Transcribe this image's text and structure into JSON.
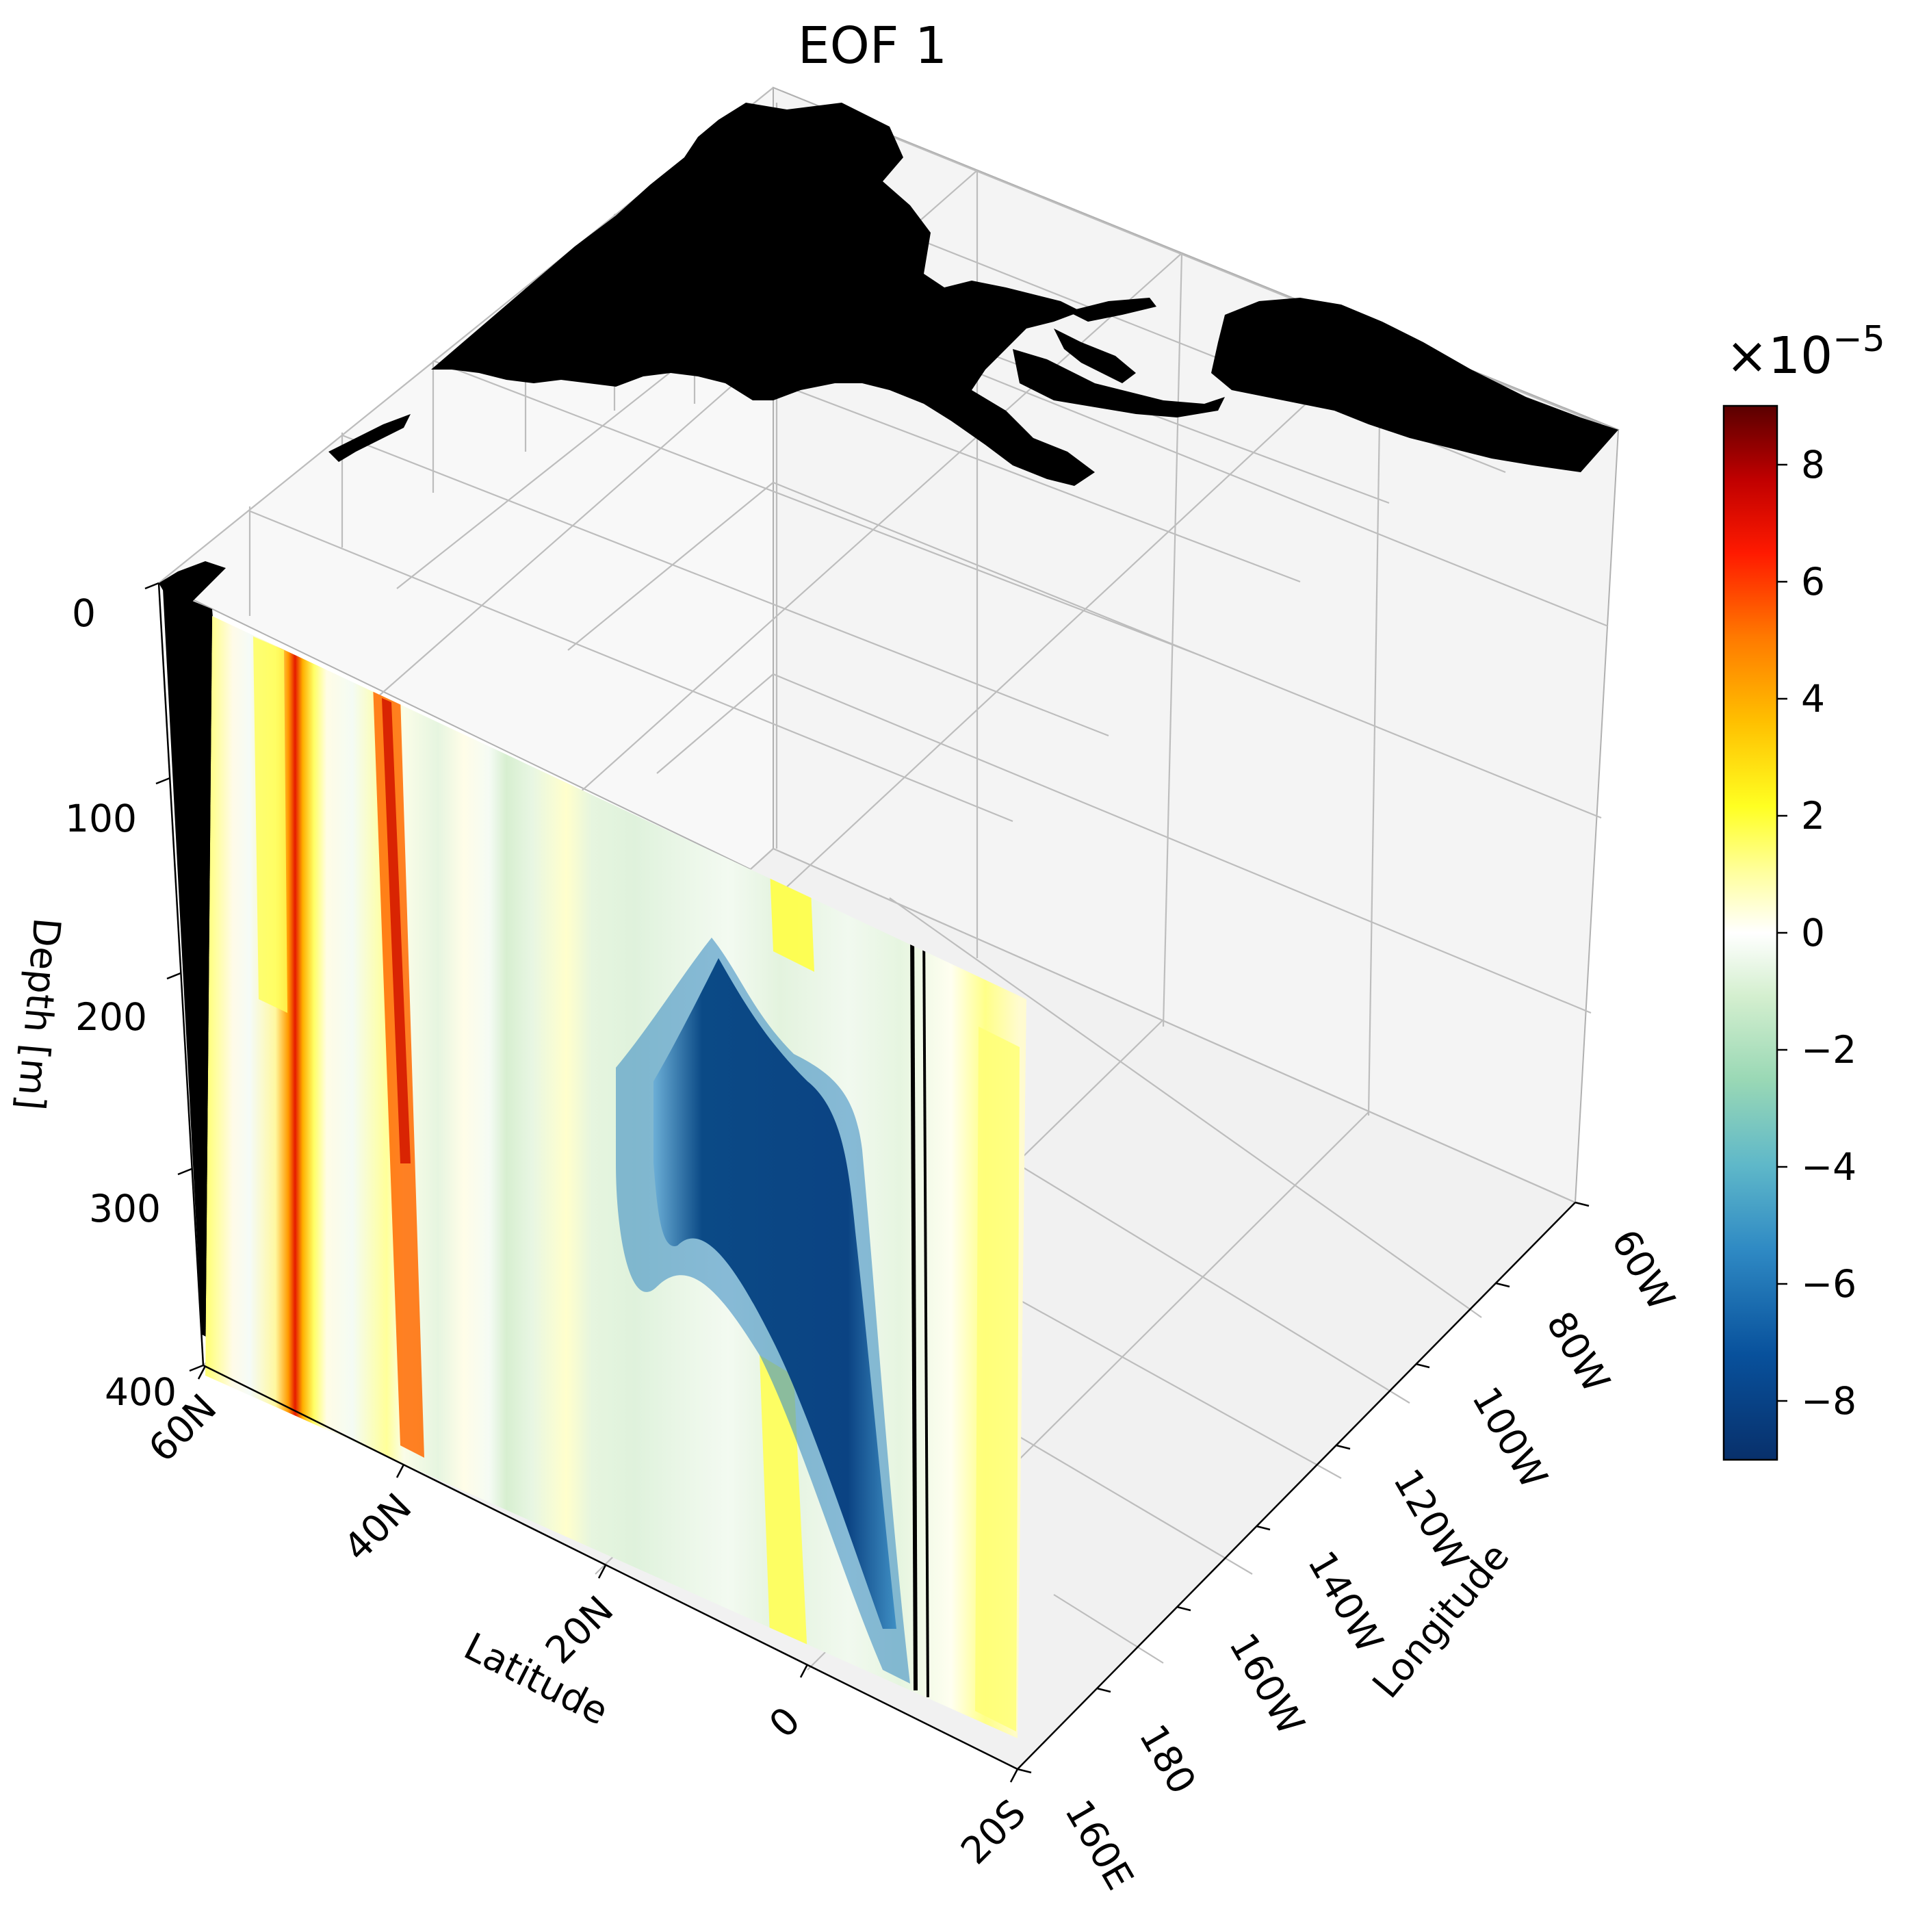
{
  "chart_data": {
    "type": "3d-contourf",
    "title": "EOF 1",
    "xlabel": "Longitude",
    "ylabel": "Latitude",
    "zlabel": "Depth [m]",
    "longitude_ticks": [
      "160E",
      "180",
      "160W",
      "140W",
      "120W",
      "100W",
      "80W",
      "60W"
    ],
    "latitude_ticks": [
      "60N",
      "40N",
      "20N",
      "0",
      "20S"
    ],
    "depth_ticks": [
      "0",
      "100",
      "200",
      "300",
      "400"
    ],
    "xlim": [
      160,
      300
    ],
    "ylim": [
      -20,
      60
    ],
    "zlim": [
      400,
      0
    ],
    "grid": true,
    "colorbar": {
      "label": "×10",
      "exponent": "−5",
      "ticks": [
        "8",
        "6",
        "4",
        "2",
        "0",
        "−2",
        "−4",
        "−6",
        "−8"
      ],
      "range": [
        -9,
        9
      ],
      "colormap": "RdYlBu_r",
      "colors": [
        "#08306b",
        "#08519c",
        "#2171b5",
        "#4292c6",
        "#6baed6",
        "#66c2a4",
        "#99d8c9",
        "#c7e9c0",
        "#e5f5e0",
        "#ffffff",
        "#ffffcc",
        "#ffff33",
        "#fed976",
        "#fd8d3c",
        "#fc4e2a",
        "#e31a1c",
        "#bd0026",
        "#67000d"
      ]
    },
    "section": {
      "longitude": 160,
      "note_features": [
        {
          "lat": 40,
          "depth_range": [
            0,
            400
          ],
          "value": 7
        },
        {
          "lat": 48,
          "depth_range": [
            0,
            300
          ],
          "value": 2
        },
        {
          "lat": 30,
          "depth_range": [
            0,
            400
          ],
          "value": 1.5
        },
        {
          "lat": 4,
          "depth_range": [
            160,
            400
          ],
          "value": -9
        },
        {
          "lat": 0,
          "depth_range": [
            200,
            400
          ],
          "value": -7
        },
        {
          "lat": -12,
          "depth_range": [
            150,
            400
          ],
          "value": 2
        }
      ]
    },
    "land_color": "#000000"
  }
}
